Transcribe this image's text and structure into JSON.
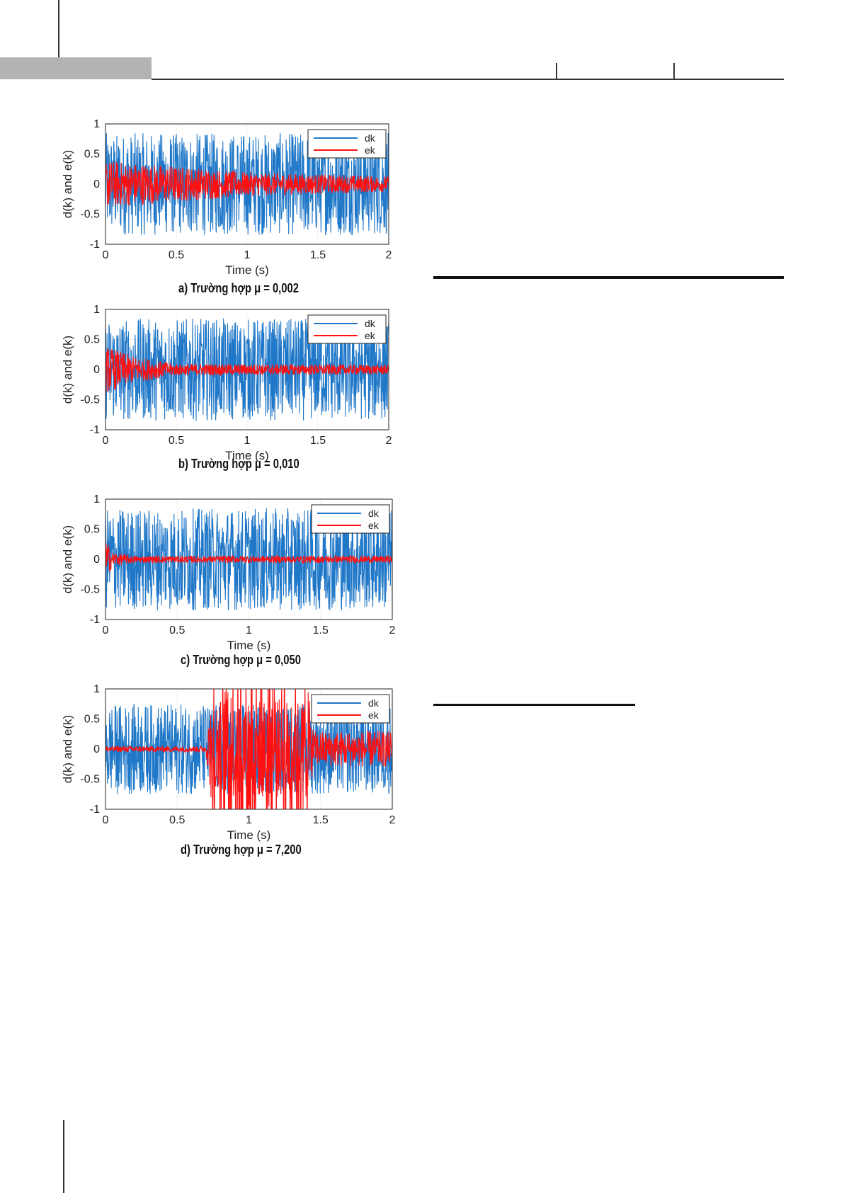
{
  "colors": {
    "dk": "#1f77c8",
    "ek": "#ff1010",
    "header_gray": "#b3b3b3"
  },
  "figures": [
    {
      "caption": "a) Trường hợp μ = 0,002"
    },
    {
      "caption": "b) Trường hợp μ = 0,010"
    },
    {
      "caption": "c) Trường hợp μ = 0,050"
    },
    {
      "caption": "d) Trường hợp μ = 7,200"
    }
  ],
  "chart_data": [
    {
      "type": "line",
      "xlabel": "Time (s)",
      "ylabel": "d(k) and e(k)",
      "xlim": [
        0,
        2
      ],
      "ylim": [
        -1,
        1
      ],
      "xticks": [
        "0",
        "0.5",
        "1",
        "1.5",
        "2"
      ],
      "yticks": [
        "-1",
        "-0.5",
        "0",
        "0.5",
        "1"
      ],
      "grid": true,
      "legend": "top-right",
      "series": [
        {
          "name": "dk",
          "kind": "noise",
          "amplitude_envelope": [
            [
              0,
              0.85
            ],
            [
              2,
              0.85
            ]
          ]
        },
        {
          "name": "ek",
          "kind": "noise",
          "amplitude_envelope": [
            [
              0,
              0.4
            ],
            [
              0.5,
              0.3
            ],
            [
              1,
              0.2
            ],
            [
              2,
              0.13
            ]
          ]
        }
      ]
    },
    {
      "type": "line",
      "xlabel": "Time (s)",
      "ylabel": "d(k) and e(k)",
      "xlim": [
        0,
        2
      ],
      "ylim": [
        -1,
        1
      ],
      "xticks": [
        "0",
        "0.5",
        "1",
        "1.5",
        "2"
      ],
      "yticks": [
        "-1",
        "-0.5",
        "0",
        "0.5",
        "1"
      ],
      "grid": true,
      "legend": "top-right",
      "series": [
        {
          "name": "dk",
          "kind": "noise",
          "amplitude_envelope": [
            [
              0,
              0.85
            ],
            [
              2,
              0.85
            ]
          ]
        },
        {
          "name": "ek",
          "kind": "noise",
          "amplitude_envelope": [
            [
              0,
              0.4
            ],
            [
              0.2,
              0.22
            ],
            [
              0.5,
              0.1
            ],
            [
              2,
              0.08
            ]
          ]
        }
      ]
    },
    {
      "type": "line",
      "xlabel": "Time (s)",
      "ylabel": "d(k) and e(k)",
      "xlim": [
        0,
        2
      ],
      "ylim": [
        -1,
        1
      ],
      "xticks": [
        "0",
        "0.5",
        "1",
        "1.5",
        "2"
      ],
      "yticks": [
        "-1",
        "-0.5",
        "0",
        "0.5",
        "1"
      ],
      "grid": true,
      "legend": "top-right",
      "series": [
        {
          "name": "dk",
          "kind": "noise",
          "amplitude_envelope": [
            [
              0,
              0.85
            ],
            [
              2,
              0.85
            ]
          ]
        },
        {
          "name": "ek",
          "kind": "noise",
          "amplitude_envelope": [
            [
              0,
              0.35
            ],
            [
              0.05,
              0.12
            ],
            [
              0.2,
              0.06
            ],
            [
              2,
              0.06
            ]
          ]
        }
      ]
    },
    {
      "type": "line",
      "xlabel": "Time (s)",
      "ylabel": "d(k) and e(k)",
      "xlim": [
        0,
        2
      ],
      "ylim": [
        -1,
        1
      ],
      "xticks": [
        "0",
        "0.5",
        "1",
        "1.5",
        "2"
      ],
      "yticks": [
        "-1",
        "-0.5",
        "0",
        "0.5",
        "1"
      ],
      "grid": true,
      "legend": "top-right",
      "series": [
        {
          "name": "dk",
          "kind": "noise",
          "amplitude_envelope": [
            [
              0,
              0.75
            ],
            [
              2,
              0.75
            ]
          ]
        },
        {
          "name": "ek",
          "kind": "unstable",
          "amplitude_envelope": [
            [
              0,
              0.05
            ],
            [
              0.7,
              0.05
            ],
            [
              0.75,
              1.2
            ],
            [
              1.4,
              1.2
            ],
            [
              1.45,
              0.3
            ],
            [
              2,
              0.3
            ]
          ]
        }
      ]
    }
  ]
}
